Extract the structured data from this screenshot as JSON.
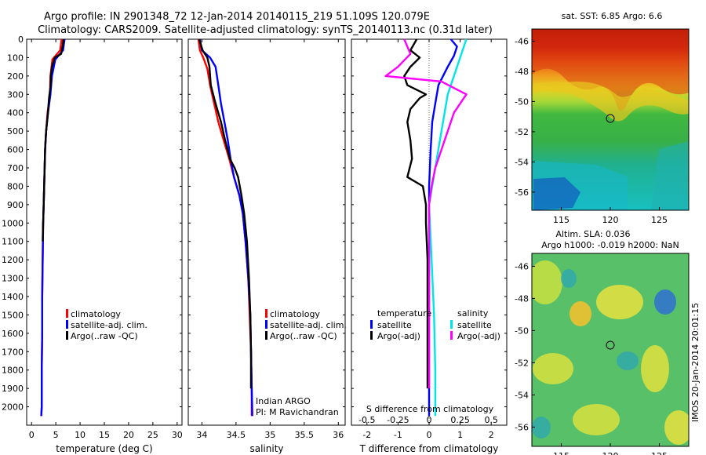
{
  "header": {
    "line1": "Argo profile: IN 2901348_72 12-Jan-2014 20140115_219 51.109S 120.079E",
    "line2": "Climatology: CARS2009. Satellite-adjusted climatology: synTS_20140113.nc (0.31d later)"
  },
  "colors": {
    "climatology": "#ff0000",
    "satellite": "#0000ff",
    "argo": "#000000",
    "sal_satellite": "#00e5e5",
    "sal_argo": "#ff00ff",
    "sal_satellite_line": "#1e90ff"
  },
  "chart_data": [
    {
      "type": "line",
      "xlabel": "temperature (deg C)",
      "ylabel": "",
      "xlim": [
        -1,
        31
      ],
      "ylim": [
        0,
        2100
      ],
      "y_inverted": true,
      "xticks": [
        "0",
        "5",
        "10",
        "15",
        "20",
        "25",
        "30"
      ],
      "yticks": [
        "0",
        "100",
        "200",
        "300",
        "400",
        "500",
        "600",
        "700",
        "800",
        "900",
        "1000",
        "1100",
        "1200",
        "1300",
        "1400",
        "1500",
        "1600",
        "1700",
        "1800",
        "1900",
        "2000"
      ],
      "legend": [
        "climatology",
        "satellite-adj. clim.",
        "Argo(..raw -QC)"
      ],
      "legend_position": "lower-right",
      "series": [
        {
          "name": "climatology",
          "color": "#ff0000",
          "points": [
            [
              6.2,
              0
            ],
            [
              5.9,
              60
            ],
            [
              4.3,
              110
            ],
            [
              3.9,
              200
            ],
            [
              3.8,
              300
            ],
            [
              3.3,
              400
            ],
            [
              3.0,
              500
            ],
            [
              2.8,
              600
            ],
            [
              2.7,
              700
            ],
            [
              2.6,
              800
            ],
            [
              2.5,
              900
            ],
            [
              2.4,
              1000
            ],
            [
              2.3,
              1200
            ],
            [
              2.2,
              1400
            ],
            [
              2.2,
              1600
            ],
            [
              2.1,
              1800
            ],
            [
              2.1,
              2000
            ],
            [
              2.0,
              2050
            ]
          ]
        },
        {
          "name": "satellite-adj. clim.",
          "color": "#0000ff",
          "points": [
            [
              6.8,
              0
            ],
            [
              6.5,
              60
            ],
            [
              4.9,
              110
            ],
            [
              4.2,
              200
            ],
            [
              3.9,
              300
            ],
            [
              3.4,
              400
            ],
            [
              3.0,
              500
            ],
            [
              2.8,
              600
            ],
            [
              2.7,
              700
            ],
            [
              2.6,
              800
            ],
            [
              2.5,
              900
            ],
            [
              2.4,
              1000
            ],
            [
              2.3,
              1200
            ],
            [
              2.2,
              1400
            ],
            [
              2.2,
              1600
            ],
            [
              2.1,
              1800
            ],
            [
              2.1,
              2000
            ],
            [
              2.0,
              2050
            ]
          ]
        },
        {
          "name": "Argo(..raw -QC)",
          "color": "#000000",
          "points": [
            [
              6.6,
              0
            ],
            [
              6.4,
              40
            ],
            [
              6.1,
              80
            ],
            [
              4.8,
              100
            ],
            [
              4.2,
              150
            ],
            [
              4.0,
              200
            ],
            [
              3.9,
              260
            ],
            [
              3.6,
              320
            ],
            [
              3.4,
              400
            ],
            [
              3.0,
              500
            ],
            [
              2.8,
              600
            ],
            [
              2.7,
              700
            ],
            [
              2.6,
              800
            ],
            [
              2.5,
              900
            ],
            [
              2.4,
              1000
            ],
            [
              2.3,
              1100
            ]
          ]
        }
      ]
    },
    {
      "type": "line",
      "xlabel": "salinity",
      "ylabel": "",
      "xlim": [
        33.8,
        36.1
      ],
      "ylim": [
        0,
        2100
      ],
      "y_inverted": true,
      "xticks": [
        "34",
        "34.5",
        "35",
        "35.5",
        "36"
      ],
      "legend": [
        "climatology",
        "satellite-adj. clim.",
        "Argo(..raw -QC)"
      ],
      "legend_position": "lower-right",
      "annotations": [
        "Indian ARGO",
        "PI: M Ravichandran"
      ],
      "series": [
        {
          "name": "climatology",
          "color": "#ff0000",
          "points": [
            [
              33.95,
              0
            ],
            [
              33.97,
              60
            ],
            [
              34.02,
              100
            ],
            [
              34.08,
              160
            ],
            [
              34.12,
              250
            ],
            [
              34.18,
              350
            ],
            [
              34.24,
              450
            ],
            [
              34.32,
              550
            ],
            [
              34.4,
              650
            ],
            [
              34.47,
              750
            ],
            [
              34.55,
              850
            ],
            [
              34.6,
              950
            ],
            [
              34.64,
              1100
            ],
            [
              34.68,
              1300
            ],
            [
              34.7,
              1500
            ],
            [
              34.72,
              1700
            ],
            [
              34.73,
              1900
            ],
            [
              34.73,
              2050
            ]
          ]
        },
        {
          "name": "satellite-adj. clim.",
          "color": "#0000ff",
          "points": [
            [
              33.97,
              0
            ],
            [
              34.0,
              60
            ],
            [
              34.12,
              100
            ],
            [
              34.2,
              150
            ],
            [
              34.24,
              250
            ],
            [
              34.28,
              350
            ],
            [
              34.33,
              450
            ],
            [
              34.38,
              550
            ],
            [
              34.42,
              650
            ],
            [
              34.47,
              750
            ],
            [
              34.55,
              850
            ],
            [
              34.6,
              950
            ],
            [
              34.64,
              1100
            ],
            [
              34.68,
              1300
            ],
            [
              34.71,
              1500
            ],
            [
              34.72,
              1700
            ],
            [
              34.73,
              1900
            ],
            [
              34.74,
              2050
            ]
          ]
        },
        {
          "name": "Argo(..raw -QC)",
          "color": "#000000",
          "points": [
            [
              33.96,
              0
            ],
            [
              34.01,
              60
            ],
            [
              34.08,
              100
            ],
            [
              34.11,
              150
            ],
            [
              34.13,
              250
            ],
            [
              34.2,
              350
            ],
            [
              34.28,
              450
            ],
            [
              34.34,
              550
            ],
            [
              34.41,
              650
            ],
            [
              34.48,
              700
            ],
            [
              34.53,
              750
            ],
            [
              34.58,
              850
            ],
            [
              34.62,
              950
            ],
            [
              34.66,
              1100
            ],
            [
              34.69,
              1300
            ],
            [
              34.71,
              1500
            ],
            [
              34.72,
              1700
            ],
            [
              34.72,
              1900
            ]
          ]
        }
      ]
    },
    {
      "type": "line",
      "xlabel": "T difference from climatology",
      "x2label": "S difference from climatology",
      "xlim": [
        -2.5,
        2.5
      ],
      "ylim": [
        0,
        2100
      ],
      "y_inverted": true,
      "xticks": [
        "-2",
        "-1",
        "0",
        "1",
        "2"
      ],
      "x2ticks": [
        "-0.5",
        "-0.25",
        "0",
        "0.25",
        "0.5"
      ],
      "legend_temperature": {
        "title": "temperature",
        "items": [
          "satellite",
          "Argo(-adj)"
        ]
      },
      "legend_salinity": {
        "title": "salinity",
        "items": [
          "satellite",
          "Argo(-adj)"
        ]
      },
      "series": [
        {
          "name": "temperature satellite",
          "color": "#0000ff",
          "points": [
            [
              0.7,
              0
            ],
            [
              0.9,
              40
            ],
            [
              0.8,
              90
            ],
            [
              0.6,
              150
            ],
            [
              0.3,
              250
            ],
            [
              0.2,
              350
            ],
            [
              0.1,
              450
            ],
            [
              0.05,
              600
            ],
            [
              0,
              800
            ],
            [
              0,
              2050
            ]
          ]
        },
        {
          "name": "temperature Argo(-adj)",
          "color": "#000000",
          "points": [
            [
              -0.4,
              0
            ],
            [
              -0.6,
              60
            ],
            [
              -0.3,
              100
            ],
            [
              -0.6,
              150
            ],
            [
              -0.8,
              200
            ],
            [
              -0.7,
              250
            ],
            [
              -0.1,
              300
            ],
            [
              -0.3,
              320
            ],
            [
              -0.6,
              380
            ],
            [
              -0.7,
              450
            ],
            [
              -0.6,
              550
            ],
            [
              -0.55,
              650
            ],
            [
              -0.7,
              750
            ],
            [
              -0.2,
              800
            ],
            [
              -0.1,
              900
            ],
            [
              -0.1,
              1000
            ],
            [
              -0.05,
              1200
            ],
            [
              -0.05,
              1500
            ],
            [
              -0.05,
              1800
            ],
            [
              -0.05,
              1900
            ]
          ]
        },
        {
          "name": "salinity satellite",
          "color": "#00e5e5",
          "points": [
            [
              0.3,
              0
            ],
            [
              0.25,
              100
            ],
            [
              0.2,
              200
            ],
            [
              0.15,
              300
            ],
            [
              0.1,
              500
            ],
            [
              0.05,
              700
            ],
            [
              0,
              900
            ],
            [
              0.02,
              1200
            ],
            [
              0.04,
              1500
            ],
            [
              0.05,
              1800
            ],
            [
              0.05,
              2050
            ]
          ]
        },
        {
          "name": "salinity Argo(-adj)",
          "color": "#ff00ff",
          "points": [
            [
              -0.2,
              0
            ],
            [
              -0.15,
              80
            ],
            [
              -0.25,
              150
            ],
            [
              -0.35,
              200
            ],
            [
              0.1,
              230
            ],
            [
              0.3,
              300
            ],
            [
              0.2,
              400
            ],
            [
              0.15,
              500
            ],
            [
              0.1,
              600
            ],
            [
              0.05,
              700
            ],
            [
              0.02,
              800
            ],
            [
              0,
              900
            ],
            [
              0,
              1000
            ],
            [
              0,
              1200
            ],
            [
              0,
              1500
            ],
            [
              0,
              1800
            ],
            [
              0,
              1900
            ]
          ]
        }
      ]
    },
    {
      "type": "heatmap",
      "title": "sat. SST: 6.85 Argo: 6.6",
      "xticks": [
        "115",
        "120",
        "125"
      ],
      "yticks": [
        "-46",
        "-48",
        "-50",
        "-52",
        "-54",
        "-56"
      ],
      "marker": [
        120.079,
        -51.109
      ]
    },
    {
      "type": "heatmap",
      "title_lines": [
        "Altim. SLA: 0.036",
        "Argo h1000: -0.019 h2000: NaN"
      ],
      "xticks": [
        "115",
        "120",
        "125"
      ],
      "yticks": [
        "-46",
        "-48",
        "-50",
        "-52",
        "-54",
        "-56"
      ],
      "marker": [
        120.079,
        -51.109
      ],
      "side_label": "IMOS 20-Jan-2014 20:01:15"
    }
  ]
}
